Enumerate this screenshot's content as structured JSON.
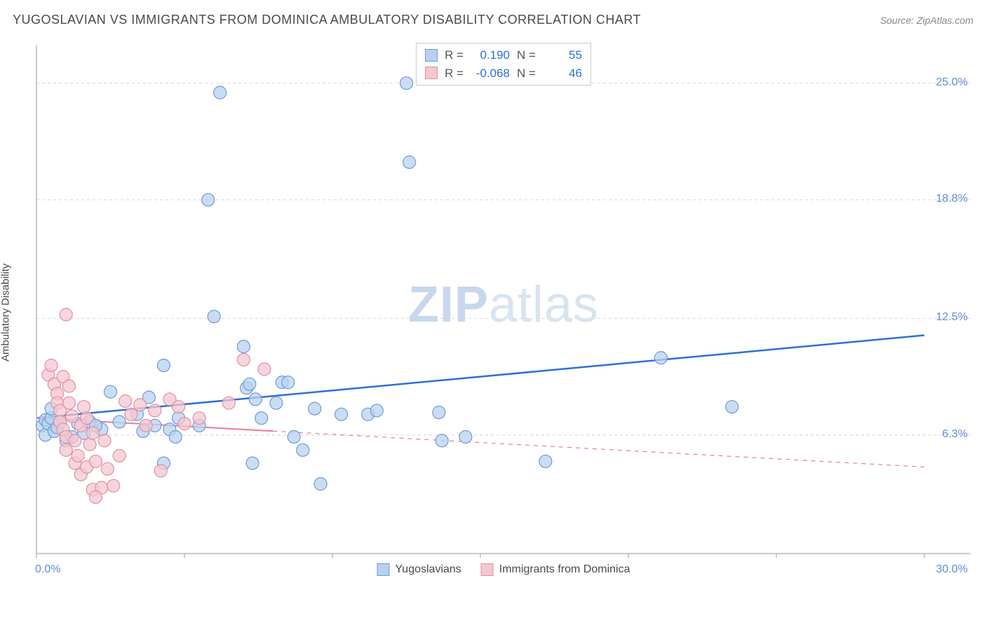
{
  "title": "YUGOSLAVIAN VS IMMIGRANTS FROM DOMINICA AMBULATORY DISABILITY CORRELATION CHART",
  "source": "Source: ZipAtlas.com",
  "y_axis_label": "Ambulatory Disability",
  "watermark": {
    "part1": "ZIP",
    "part2": "atlas"
  },
  "chart": {
    "type": "scatter",
    "xlim": [
      0,
      30
    ],
    "ylim": [
      0,
      27
    ],
    "x_ticks": [
      0,
      5,
      10,
      15,
      20,
      25,
      30
    ],
    "x_tick_labels_visible": {
      "0": "0.0%",
      "30": "30.0%"
    },
    "y_ticks": [
      6.3,
      12.5,
      18.8,
      25.0
    ],
    "y_tick_labels": [
      "6.3%",
      "12.5%",
      "18.8%",
      "25.0%"
    ],
    "grid_color": "#d5d5d5",
    "axis_line_color": "#999999",
    "background_color": "#ffffff",
    "marker_radius": 9,
    "marker_stroke_width": 1.2,
    "series": [
      {
        "name": "Yugoslavians",
        "color_fill": "#b9d1ef",
        "color_stroke": "#6a9cd8",
        "R": "0.190",
        "N": "55",
        "trend": {
          "y_at_x0": 7.2,
          "y_at_x30": 11.6,
          "solid_until_x": 30,
          "line_color": "#2e6fd9",
          "line_width": 2.5
        },
        "points": [
          [
            0.2,
            6.8
          ],
          [
            0.3,
            7.1
          ],
          [
            0.3,
            6.3
          ],
          [
            0.4,
            6.9
          ],
          [
            0.5,
            7.2
          ],
          [
            0.5,
            7.7
          ],
          [
            0.6,
            6.5
          ],
          [
            0.7,
            6.7
          ],
          [
            0.8,
            7.0
          ],
          [
            2.5,
            8.6
          ],
          [
            1.8,
            7.0
          ],
          [
            2.2,
            6.6
          ],
          [
            2.8,
            7.0
          ],
          [
            3.4,
            7.4
          ],
          [
            3.6,
            6.5
          ],
          [
            4.3,
            10.0
          ],
          [
            3.8,
            8.3
          ],
          [
            4.0,
            6.8
          ],
          [
            4.3,
            4.8
          ],
          [
            4.5,
            6.6
          ],
          [
            4.7,
            6.2
          ],
          [
            4.8,
            7.2
          ],
          [
            5.5,
            6.8
          ],
          [
            6.0,
            12.6
          ],
          [
            6.2,
            24.5
          ],
          [
            5.8,
            18.8
          ],
          [
            7.0,
            11.0
          ],
          [
            7.1,
            8.8
          ],
          [
            7.2,
            9.0
          ],
          [
            7.3,
            4.8
          ],
          [
            7.4,
            8.2
          ],
          [
            7.6,
            7.2
          ],
          [
            8.1,
            8.0
          ],
          [
            8.3,
            9.1
          ],
          [
            8.5,
            9.1
          ],
          [
            8.7,
            6.2
          ],
          [
            9.0,
            5.5
          ],
          [
            9.4,
            7.7
          ],
          [
            9.6,
            3.7
          ],
          [
            10.3,
            7.4
          ],
          [
            11.2,
            7.4
          ],
          [
            11.5,
            7.6
          ],
          [
            12.6,
            20.8
          ],
          [
            13.6,
            7.5
          ],
          [
            13.7,
            6.0
          ],
          [
            14.5,
            6.2
          ],
          [
            17.2,
            4.9
          ],
          [
            21.1,
            10.4
          ],
          [
            23.5,
            7.8
          ],
          [
            1.0,
            6.0
          ],
          [
            1.2,
            6.2
          ],
          [
            1.4,
            6.9
          ],
          [
            1.6,
            6.4
          ],
          [
            2.0,
            6.8
          ],
          [
            12.5,
            25.0
          ]
        ]
      },
      {
        "name": "Immigrants from Dominica",
        "color_fill": "#f4c7d0",
        "color_stroke": "#e38fa3",
        "R": "-0.068",
        "N": "46",
        "trend": {
          "y_at_x0": 7.2,
          "y_at_x30": 4.6,
          "solid_until_x": 8,
          "line_color": "#e97ba0",
          "line_width": 2
        },
        "points": [
          [
            0.4,
            9.5
          ],
          [
            0.5,
            10.0
          ],
          [
            0.6,
            9.0
          ],
          [
            0.7,
            8.5
          ],
          [
            0.7,
            8.0
          ],
          [
            0.8,
            7.6
          ],
          [
            0.8,
            7.0
          ],
          [
            0.9,
            6.6
          ],
          [
            0.9,
            9.4
          ],
          [
            1.0,
            5.5
          ],
          [
            1.0,
            6.2
          ],
          [
            1.1,
            8.0
          ],
          [
            1.1,
            8.9
          ],
          [
            1.2,
            7.3
          ],
          [
            1.3,
            6.0
          ],
          [
            1.3,
            4.8
          ],
          [
            1.4,
            5.2
          ],
          [
            1.5,
            4.2
          ],
          [
            1.5,
            6.8
          ],
          [
            1.6,
            7.8
          ],
          [
            1.7,
            7.2
          ],
          [
            1.7,
            4.6
          ],
          [
            1.8,
            5.8
          ],
          [
            1.9,
            3.4
          ],
          [
            1.9,
            6.4
          ],
          [
            2.0,
            4.9
          ],
          [
            2.2,
            3.5
          ],
          [
            2.4,
            4.5
          ],
          [
            2.6,
            3.6
          ],
          [
            2.8,
            5.2
          ],
          [
            3.0,
            8.1
          ],
          [
            3.2,
            7.4
          ],
          [
            3.5,
            7.9
          ],
          [
            3.7,
            6.8
          ],
          [
            4.0,
            7.6
          ],
          [
            4.2,
            4.4
          ],
          [
            4.5,
            8.2
          ],
          [
            4.8,
            7.8
          ],
          [
            5.0,
            6.9
          ],
          [
            5.5,
            7.2
          ],
          [
            6.5,
            8.0
          ],
          [
            7.0,
            10.3
          ],
          [
            7.7,
            9.8
          ],
          [
            1.0,
            12.7
          ],
          [
            2.0,
            3.0
          ],
          [
            2.3,
            6.0
          ]
        ]
      }
    ]
  },
  "stats_labels": {
    "R": "R =",
    "N": "N ="
  },
  "bottom_legend": [
    {
      "label": "Yugoslavians",
      "fill": "#b9d1ef",
      "stroke": "#6a9cd8"
    },
    {
      "label": "Immigrants from Dominica",
      "fill": "#f4c7d0",
      "stroke": "#e38fa3"
    }
  ]
}
